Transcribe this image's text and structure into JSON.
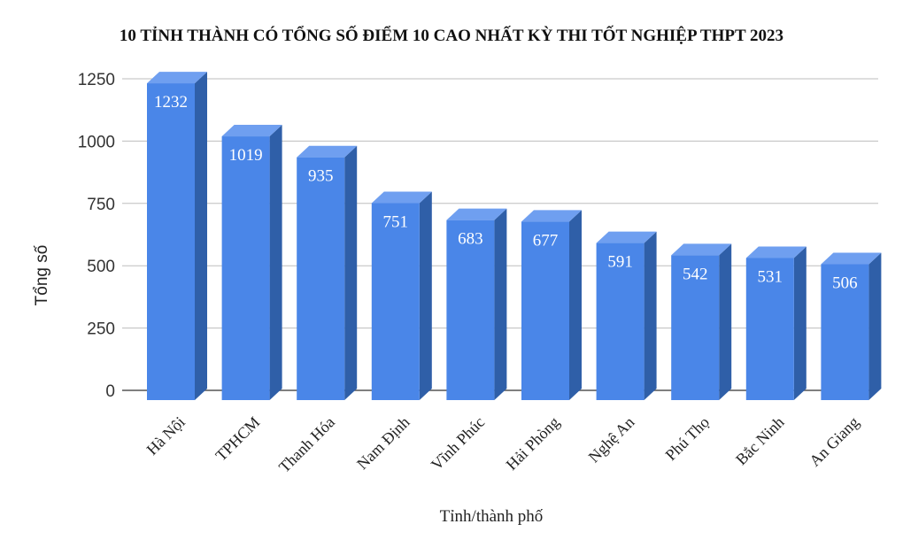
{
  "chart_data": {
    "type": "bar",
    "title": "10 TỈNH THÀNH CÓ TỔNG SỐ ĐIỂM 10 CAO NHẤT KỲ THI TỐT NGHIỆP THPT 2023",
    "xlabel": "Tỉnh/thành phố",
    "ylabel": "Tổng số",
    "categories": [
      "Hà Nội",
      "TPHCM",
      "Thanh Hóa",
      "Nam Định",
      "Vĩnh Phúc",
      "Hải Phòng",
      "Nghệ An",
      "Phú Thọ",
      "Bắc Ninh",
      "An Giang"
    ],
    "values": [
      1232,
      1019,
      935,
      751,
      683,
      677,
      591,
      542,
      531,
      506
    ],
    "ylim": [
      0,
      1250
    ],
    "yticks": [
      0,
      250,
      500,
      750,
      1000,
      1250
    ],
    "grid": true,
    "style": "3d-column",
    "colors": {
      "bar_front": "#4a86e8",
      "bar_side": "#2f5fa8",
      "bar_top": "#6f9ff0",
      "grid": "#bdbdbd",
      "axis": "#555555"
    }
  }
}
